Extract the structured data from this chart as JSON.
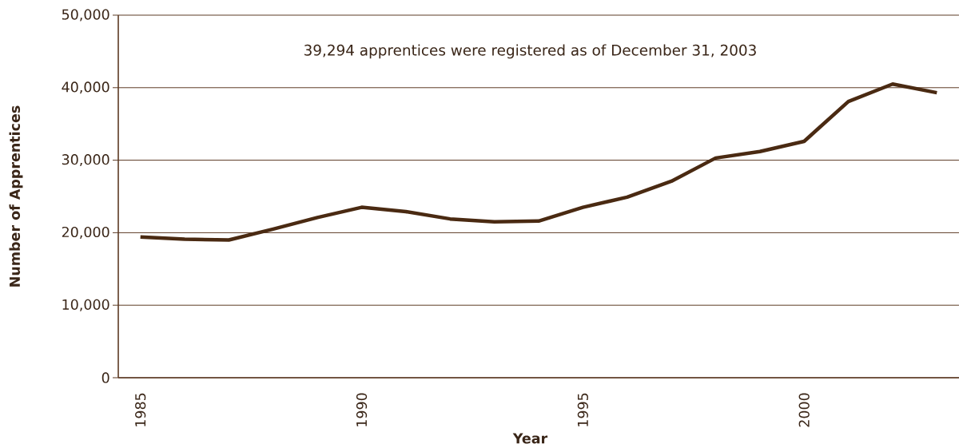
{
  "chart_data": {
    "type": "line",
    "xlabel": "Year",
    "ylabel": "Number of Apprentices",
    "annotations": [
      "39,294 apprentices were registered as of December 31, 2003"
    ],
    "categories": [
      "1985",
      null,
      null,
      null,
      null,
      "1990",
      null,
      null,
      null,
      null,
      "1995",
      null,
      null,
      null,
      null,
      "2000",
      null,
      null,
      null
    ],
    "values": [
      19400,
      19100,
      19000,
      20500,
      22100,
      23500,
      22900,
      21900,
      21500,
      21600,
      23500,
      24900,
      27100,
      30300,
      31200,
      32600,
      38100,
      40500,
      39300
    ],
    "color": "#4a2a12",
    "ylim": [
      0,
      50000
    ],
    "yticks": [
      {
        "value": 0,
        "label": "0"
      },
      {
        "value": 10000,
        "label": "10,000"
      },
      {
        "value": 20000,
        "label": "20,000"
      },
      {
        "value": 30000,
        "label": "30,000"
      },
      {
        "value": 40000,
        "label": "40,000"
      },
      {
        "value": 50000,
        "label": "50,000"
      }
    ],
    "grid": "y"
  }
}
